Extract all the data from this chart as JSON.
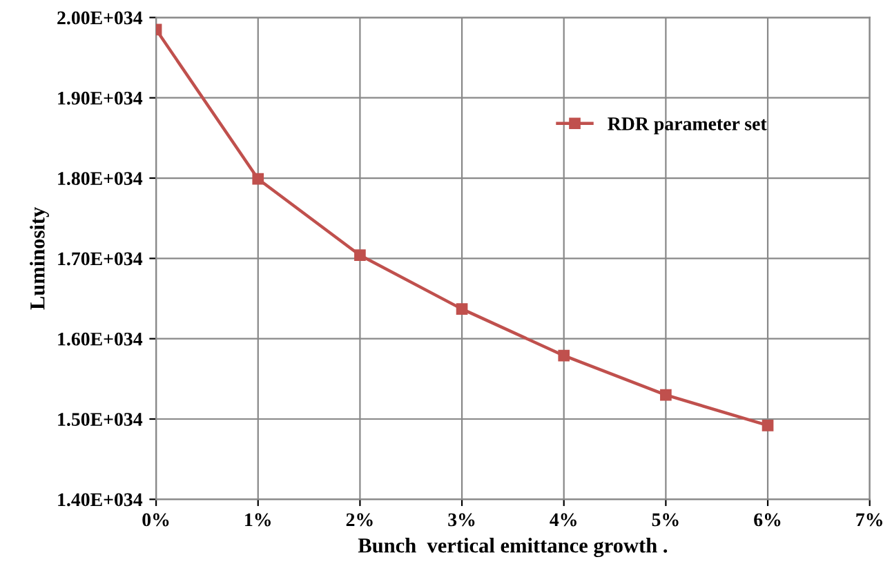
{
  "chart_data": {
    "type": "line",
    "xlabel": "Bunch  vertical emittance growth .",
    "ylabel": "Luminosity",
    "x": [
      0,
      1,
      2,
      3,
      4,
      5,
      6
    ],
    "series": [
      {
        "name": "RDR parameter set",
        "color": "#c0504d",
        "values": [
          1.985e+34,
          1.799e+34,
          1.704e+34,
          1.637e+34,
          1.579e+34,
          1.53e+34,
          1.492e+34
        ]
      }
    ],
    "xlim": [
      0,
      7
    ],
    "xticks": [
      {
        "value": 0,
        "label": "0%"
      },
      {
        "value": 1,
        "label": "1%"
      },
      {
        "value": 2,
        "label": "2%"
      },
      {
        "value": 3,
        "label": "3%"
      },
      {
        "value": 4,
        "label": "4%"
      },
      {
        "value": 5,
        "label": "5%"
      },
      {
        "value": 6,
        "label": "6%"
      },
      {
        "value": 7,
        "label": "7%"
      }
    ],
    "ylim": [
      1.4e+34,
      2e+34
    ],
    "yticks": [
      {
        "value": 1.4e+34,
        "label": "1.40E+034"
      },
      {
        "value": 1.5e+34,
        "label": "1.50E+034"
      },
      {
        "value": 1.6e+34,
        "label": "1.60E+034"
      },
      {
        "value": 1.7e+34,
        "label": "1.70E+034"
      },
      {
        "value": 1.8e+34,
        "label": "1.80E+034"
      },
      {
        "value": 1.9e+34,
        "label": "1.90E+034"
      },
      {
        "value": 2e+34,
        "label": "2.00E+034"
      }
    ],
    "grid": true,
    "legend": "top right",
    "marker": "square",
    "line_style": "solid"
  }
}
